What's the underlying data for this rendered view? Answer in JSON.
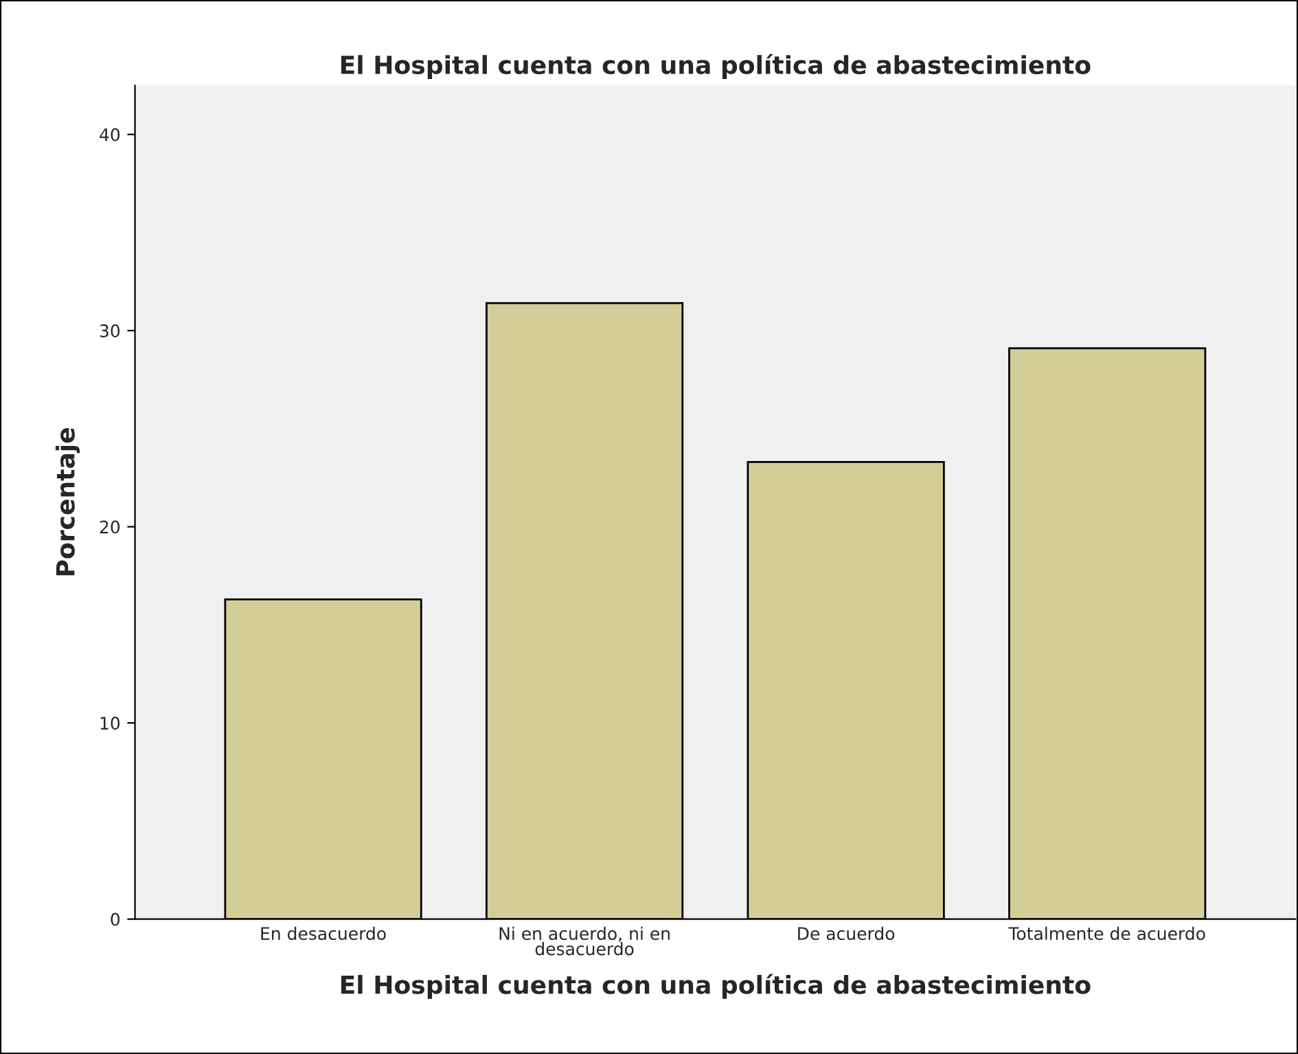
{
  "chart_data": {
    "type": "bar",
    "title": "El Hospital cuenta con una política de abastecimiento",
    "xlabel": "El Hospital cuenta con una política de abastecimiento",
    "ylabel": "Porcentaje",
    "categories": [
      "En desacuerdo",
      "Ni en acuerdo, ni en\ndesacuerdo",
      "De acuerdo",
      "Totalmente de acuerdo"
    ],
    "values": [
      16.3,
      31.4,
      23.3,
      29.1
    ],
    "color": "#d3ce97",
    "ylim": [
      0,
      42.5
    ],
    "yticks": [
      0,
      10,
      20,
      30,
      40
    ],
    "grid": false
  }
}
